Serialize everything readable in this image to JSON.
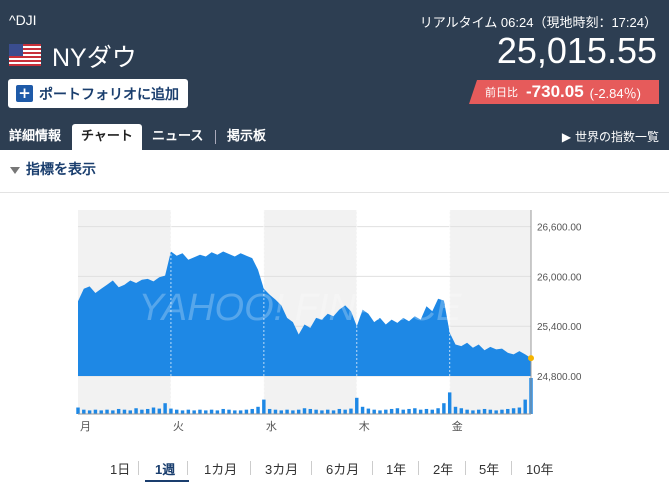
{
  "header": {
    "ticker": "^DJI",
    "name": "NYダウ",
    "realtime": "リアルタイム 06:24（現地時刻：17:24）",
    "price": "25,015.55",
    "change_label": "前日比",
    "change_value": "-730.05",
    "change_pct": "(-2.84％)",
    "add_portfolio": "ポートフォリオに追加",
    "flag_icon": "us-flag-icon"
  },
  "tabs": [
    {
      "label": "詳細情報"
    },
    {
      "label": "チャート"
    },
    {
      "label": "ニュース"
    },
    {
      "label": "掲示板"
    }
  ],
  "world_index": "世界の指数一覧",
  "indicator_toggle": "指標を表示",
  "periods": [
    "1日",
    "1週",
    "1カ月",
    "3カ月",
    "6カ月",
    "1年",
    "2年",
    "5年",
    "10年"
  ],
  "active_period": "1週",
  "colors": {
    "header": "#2d3e52",
    "accent": "#1e5aa8",
    "area": "#1e88e5",
    "negative": "#e65b5b",
    "band": "#f2f2f2"
  },
  "chart_data": {
    "type": "area",
    "watermark": "YAHOO! FINANCE",
    "y_ticks": [
      "26,600.00",
      "26,000.00",
      "25,400.00",
      "24,800.00"
    ],
    "ylim": [
      24800,
      26800
    ],
    "x_labels": [
      "月",
      "火",
      "水",
      "木",
      "金"
    ],
    "day_lengths": [
      16,
      16,
      16,
      16,
      15
    ],
    "last_value": 25015.55,
    "series": [
      {
        "values": [
          25700,
          25850,
          25880,
          25800,
          25850,
          25900,
          25950,
          25870,
          25900,
          25950,
          25920,
          25960,
          25970,
          25940,
          25990,
          26010,
          26300,
          26250,
          26280,
          26200,
          26230,
          26260,
          26240,
          26290,
          26260,
          26300,
          26270,
          26240,
          26280,
          26250,
          26220,
          26080,
          25850,
          25780,
          25720,
          25650,
          25500,
          25450,
          25300,
          25420,
          25380,
          25500,
          25480,
          25550,
          25520,
          25600,
          25650,
          25580,
          25400,
          25600,
          25550,
          25450,
          25500,
          25420,
          25480,
          25440,
          25500,
          25460,
          25520,
          25480,
          25640,
          25580,
          25730,
          25710,
          25320,
          25180,
          25160,
          25200,
          25140,
          25180,
          25110,
          25150,
          25120,
          25130,
          25080,
          25060,
          25100,
          25060,
          25015.55
        ]
      },
      {
        "volume": [
          18,
          12,
          10,
          12,
          10,
          12,
          10,
          14,
          12,
          10,
          16,
          12,
          14,
          18,
          15,
          30,
          15,
          12,
          10,
          12,
          10,
          12,
          10,
          12,
          10,
          14,
          12,
          10,
          10,
          12,
          14,
          20,
          40,
          14,
          12,
          10,
          12,
          10,
          12,
          16,
          14,
          12,
          10,
          12,
          10,
          14,
          12,
          15,
          45,
          20,
          15,
          12,
          10,
          12,
          14,
          16,
          12,
          14,
          16,
          12,
          14,
          12,
          16,
          30,
          60,
          20,
          16,
          12,
          10,
          12,
          14,
          12,
          10,
          12,
          14,
          16,
          18,
          40,
          100
        ]
      }
    ]
  }
}
